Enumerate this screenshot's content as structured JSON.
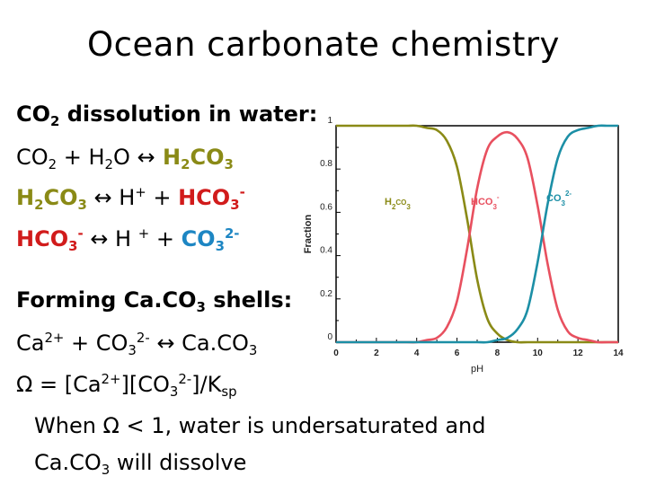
{
  "slide": {
    "title": "Ocean carbonate chemistry",
    "dissolution_heading": "CO",
    "dissolution_heading_sub": "2",
    "dissolution_heading_rest": " dissolution in water:",
    "eq1": {
      "a": "CO",
      "a_sub": "2",
      "b": " + H",
      "b_sub": "2",
      "c": "O ",
      "arrow": "↔",
      "d": " H",
      "d_sub": "2",
      "e": "CO",
      "e_sub": "3"
    },
    "eq2": {
      "a": "H",
      "a_sub": "2",
      "b": "CO",
      "b_sub": "3",
      "arrow": " ↔ ",
      "c": "H",
      "c_sup": "+",
      "d": " + ",
      "e": "HCO",
      "e_sub": "3",
      "e_sup": "-"
    },
    "eq3": {
      "a": "HCO",
      "a_sub": "3",
      "a_sup": "-",
      "arrow": " ↔ ",
      "b": "H ",
      "b_sup": "+",
      "c": " + ",
      "d": "CO",
      "d_sub": "3",
      "d_sup": "2-"
    },
    "shells_heading": "Forming Ca.CO",
    "shells_heading_sub": "3",
    "shells_heading_rest": " shells:",
    "eq4": {
      "a": "Ca",
      "a_sup": "2+",
      "b": " + CO",
      "b_sub": "3",
      "b_sup": "2-",
      "arrow": " ↔ ",
      "c": "Ca.CO",
      "c_sub": "3"
    },
    "omega": {
      "a": "Ω = [Ca",
      "a_sup": "2+",
      "b": "][CO",
      "b_sub": "3",
      "b_sup": "2-",
      "c": "]/K",
      "c_sub": "sp"
    },
    "note_line1": "When Ω < 1, water is undersaturated and",
    "note_line2a": "Ca.CO",
    "note_line2_sub": "3",
    "note_line2b": " will dissolve"
  },
  "colors": {
    "h2co3": "#8a8a16",
    "hco3": "#e8505f",
    "co3": "#1c8fa6",
    "red_text": "#d11b1b",
    "blue_text": "#1d86c3"
  },
  "chart_data": {
    "type": "line",
    "xlabel": "pH",
    "ylabel": "Fraction",
    "xlim": [
      0,
      14
    ],
    "ylim": [
      0,
      1
    ],
    "xticks": [
      "0",
      "2",
      "4",
      "6",
      "8",
      "10",
      "12",
      "14"
    ],
    "yticks": [
      "0",
      "0.2",
      "0.4",
      "0.6",
      "0.8",
      "1"
    ],
    "grid": false,
    "x": [
      0,
      0.5,
      1,
      1.5,
      2,
      2.5,
      3,
      3.5,
      4,
      4.5,
      5,
      5.5,
      6,
      6.5,
      7,
      7.5,
      8,
      8.5,
      9,
      9.5,
      10,
      10.5,
      11,
      11.5,
      12,
      12.5,
      13,
      13.5,
      14
    ],
    "series": [
      {
        "name": "H2CO3",
        "label_main": "H",
        "label_sub1": "2",
        "label_mid": "CO",
        "label_sub2": "3",
        "values": [
          1,
          1,
          1,
          1,
          1,
          1,
          1,
          1,
          1,
          0.99,
          0.98,
          0.93,
          0.81,
          0.57,
          0.29,
          0.11,
          0.04,
          0.01,
          0,
          0,
          0,
          0,
          0,
          0,
          0,
          0,
          0,
          0,
          0
        ]
      },
      {
        "name": "HCO3-",
        "label_main": "HCO",
        "label_sub": "3",
        "label_sup": "-",
        "values": [
          0,
          0,
          0,
          0,
          0,
          0,
          0,
          0,
          0,
          0.01,
          0.02,
          0.07,
          0.19,
          0.43,
          0.71,
          0.89,
          0.95,
          0.97,
          0.94,
          0.85,
          0.63,
          0.36,
          0.15,
          0.05,
          0.02,
          0.01,
          0,
          0,
          0
        ]
      },
      {
        "name": "CO32-",
        "label_main": "CO",
        "label_sub": "3",
        "label_sup": "2-",
        "values": [
          0,
          0,
          0,
          0,
          0,
          0,
          0,
          0,
          0,
          0,
          0,
          0,
          0,
          0,
          0,
          0,
          0.01,
          0.02,
          0.06,
          0.15,
          0.37,
          0.64,
          0.85,
          0.95,
          0.98,
          0.99,
          1,
          1,
          1
        ]
      }
    ]
  }
}
